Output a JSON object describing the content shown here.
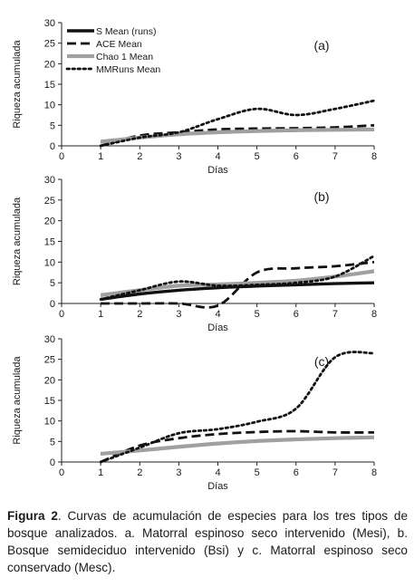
{
  "figure": {
    "caption_label": "Figura 2",
    "caption_text": ". Curvas de acumulación de especies para los tres tipos de bosque analizados. a. Matorral espinoso seco intervenido (Mesi), b. Bosque semideciduo intervenido (Bsi) y c. Matorral espinoso seco conservado (Mesc)."
  },
  "chart_data": [
    {
      "type": "line",
      "panel_label": "(a)",
      "xlabel": "Días",
      "ylabel": "Riqueza acumulada",
      "xlim": [
        0,
        8
      ],
      "ylim": [
        0,
        30
      ],
      "xticks": [
        0,
        1,
        2,
        3,
        4,
        5,
        6,
        7,
        8
      ],
      "yticks": [
        0,
        5,
        10,
        15,
        20,
        25,
        30
      ],
      "legend_position": "top-left",
      "series": [
        {
          "name": "S Mean (runs)",
          "style": "solid",
          "color": "#111111",
          "x": [
            1,
            2,
            3,
            4,
            5,
            6,
            7,
            8
          ],
          "values": [
            1,
            2,
            2.8,
            3.3,
            3.6,
            3.8,
            3.9,
            4.0
          ]
        },
        {
          "name": "ACE Mean",
          "style": "dashed",
          "color": "#111111",
          "x": [
            1,
            2,
            3,
            4,
            5,
            6,
            7,
            8
          ],
          "values": [
            0,
            2.5,
            3.3,
            4.0,
            4.2,
            4.3,
            4.5,
            5.0
          ]
        },
        {
          "name": "Chao 1 Mean",
          "style": "gray",
          "color": "#999999",
          "x": [
            1,
            2,
            3,
            4,
            5,
            6,
            7,
            8
          ],
          "values": [
            1,
            2,
            2.8,
            3.3,
            3.6,
            3.8,
            3.9,
            4.0
          ]
        },
        {
          "name": "MMRuns Mean",
          "style": "dotted",
          "color": "#111111",
          "x": [
            1,
            2,
            3,
            4,
            5,
            6,
            7,
            8
          ],
          "values": [
            0,
            2.0,
            3.3,
            6.5,
            9.0,
            7.5,
            9.0,
            11.0
          ]
        }
      ]
    },
    {
      "type": "line",
      "panel_label": "(b)",
      "xlabel": "Días",
      "ylabel": "Riqueza acumulada",
      "xlim": [
        0,
        8
      ],
      "ylim": [
        0,
        30
      ],
      "xticks": [
        0,
        1,
        2,
        3,
        4,
        5,
        6,
        7,
        8
      ],
      "yticks": [
        0,
        5,
        10,
        15,
        20,
        25,
        30
      ],
      "series": [
        {
          "name": "S Mean (runs)",
          "style": "solid",
          "color": "#111111",
          "x": [
            1,
            2,
            3,
            4,
            5,
            6,
            7,
            8
          ],
          "values": [
            1,
            2.3,
            3.2,
            3.8,
            4.2,
            4.5,
            4.8,
            5.0
          ]
        },
        {
          "name": "ACE Mean",
          "style": "dashed",
          "color": "#111111",
          "x": [
            1,
            2,
            3,
            4,
            5,
            6,
            7,
            8
          ],
          "values": [
            0,
            0,
            0,
            -0.5,
            7.5,
            8.5,
            9.0,
            10.0
          ]
        },
        {
          "name": "Chao 1 Mean",
          "style": "gray",
          "color": "#999999",
          "x": [
            1,
            2,
            3,
            4,
            5,
            6,
            7,
            8
          ],
          "values": [
            2,
            3.2,
            4.3,
            4.6,
            5.0,
            5.5,
            6.5,
            7.8
          ]
        },
        {
          "name": "MMRuns Mean",
          "style": "dotted",
          "color": "#111111",
          "x": [
            1,
            2,
            3,
            4,
            5,
            6,
            7,
            8
          ],
          "values": [
            1,
            3.2,
            5.3,
            4.3,
            4.5,
            5.0,
            6.5,
            11.5
          ]
        }
      ]
    },
    {
      "type": "line",
      "panel_label": "(c)",
      "xlabel": "Días",
      "ylabel": "Riqueza acumulada",
      "xlim": [
        0,
        8
      ],
      "ylim": [
        0,
        30
      ],
      "xticks": [
        0,
        1,
        2,
        3,
        4,
        5,
        6,
        7,
        8
      ],
      "yticks": [
        0,
        5,
        10,
        15,
        20,
        25,
        30
      ],
      "series": [
        {
          "name": "S Mean (runs)",
          "style": "solid",
          "color": "#111111",
          "x": [
            1,
            2,
            3,
            4,
            5,
            6,
            7,
            8
          ],
          "values": [
            2,
            2.8,
            3.7,
            4.5,
            5.1,
            5.5,
            5.8,
            6.0
          ]
        },
        {
          "name": "ACE Mean",
          "style": "dashed",
          "color": "#111111",
          "x": [
            1,
            2,
            3,
            4,
            5,
            6,
            7,
            8
          ],
          "values": [
            0,
            4.0,
            5.8,
            6.8,
            7.3,
            7.5,
            7.2,
            7.2
          ]
        },
        {
          "name": "Chao 1 Mean",
          "style": "gray",
          "color": "#999999",
          "x": [
            1,
            2,
            3,
            4,
            5,
            6,
            7,
            8
          ],
          "values": [
            2,
            2.8,
            3.7,
            4.5,
            5.1,
            5.5,
            5.8,
            6.0
          ]
        },
        {
          "name": "MMRuns Mean",
          "style": "dotted",
          "color": "#111111",
          "x": [
            1,
            2,
            3,
            4,
            5,
            6,
            7,
            8
          ],
          "values": [
            0,
            3.5,
            7.0,
            8.0,
            9.8,
            13.0,
            25.5,
            26.5
          ]
        }
      ]
    }
  ]
}
